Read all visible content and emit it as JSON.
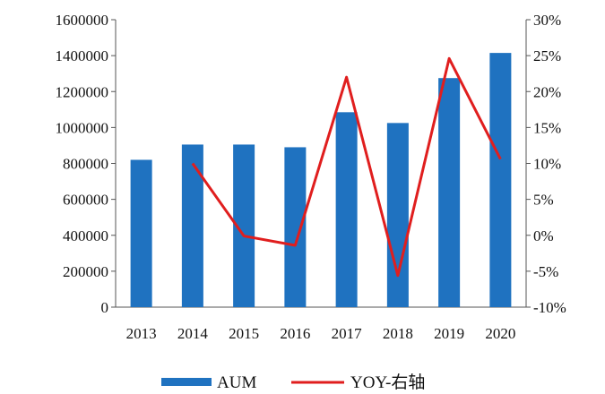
{
  "chart_data": {
    "type": "bar",
    "categories": [
      "2013",
      "2014",
      "2015",
      "2016",
      "2017",
      "2018",
      "2019",
      "2020"
    ],
    "series": [
      {
        "name": "AUM",
        "type": "bar",
        "axis": "left",
        "color": "#1f72c0",
        "values": [
          820000,
          905000,
          905000,
          890000,
          1085000,
          1025000,
          1275000,
          1415000
        ]
      },
      {
        "name": "YOY-右轴",
        "type": "line",
        "axis": "right",
        "color": "#e01e1e",
        "values": [
          null,
          10.0,
          -0.1,
          -1.4,
          22.0,
          -5.6,
          24.6,
          10.6
        ]
      }
    ],
    "y_left": {
      "min": 0,
      "max": 1600000,
      "step": 200000,
      "tick_labels": [
        "0",
        "200000",
        "400000",
        "600000",
        "800000",
        "1000000",
        "1200000",
        "1400000",
        "1600000"
      ]
    },
    "y_right": {
      "min": -10,
      "max": 30,
      "step": 5,
      "unit": "%",
      "tick_labels": [
        "-10%",
        "-5%",
        "0%",
        "5%",
        "10%",
        "15%",
        "20%",
        "25%",
        "30%"
      ]
    },
    "grid": false,
    "legend": {
      "position": "bottom",
      "entries": [
        "AUM",
        "YOY-右轴"
      ]
    }
  }
}
